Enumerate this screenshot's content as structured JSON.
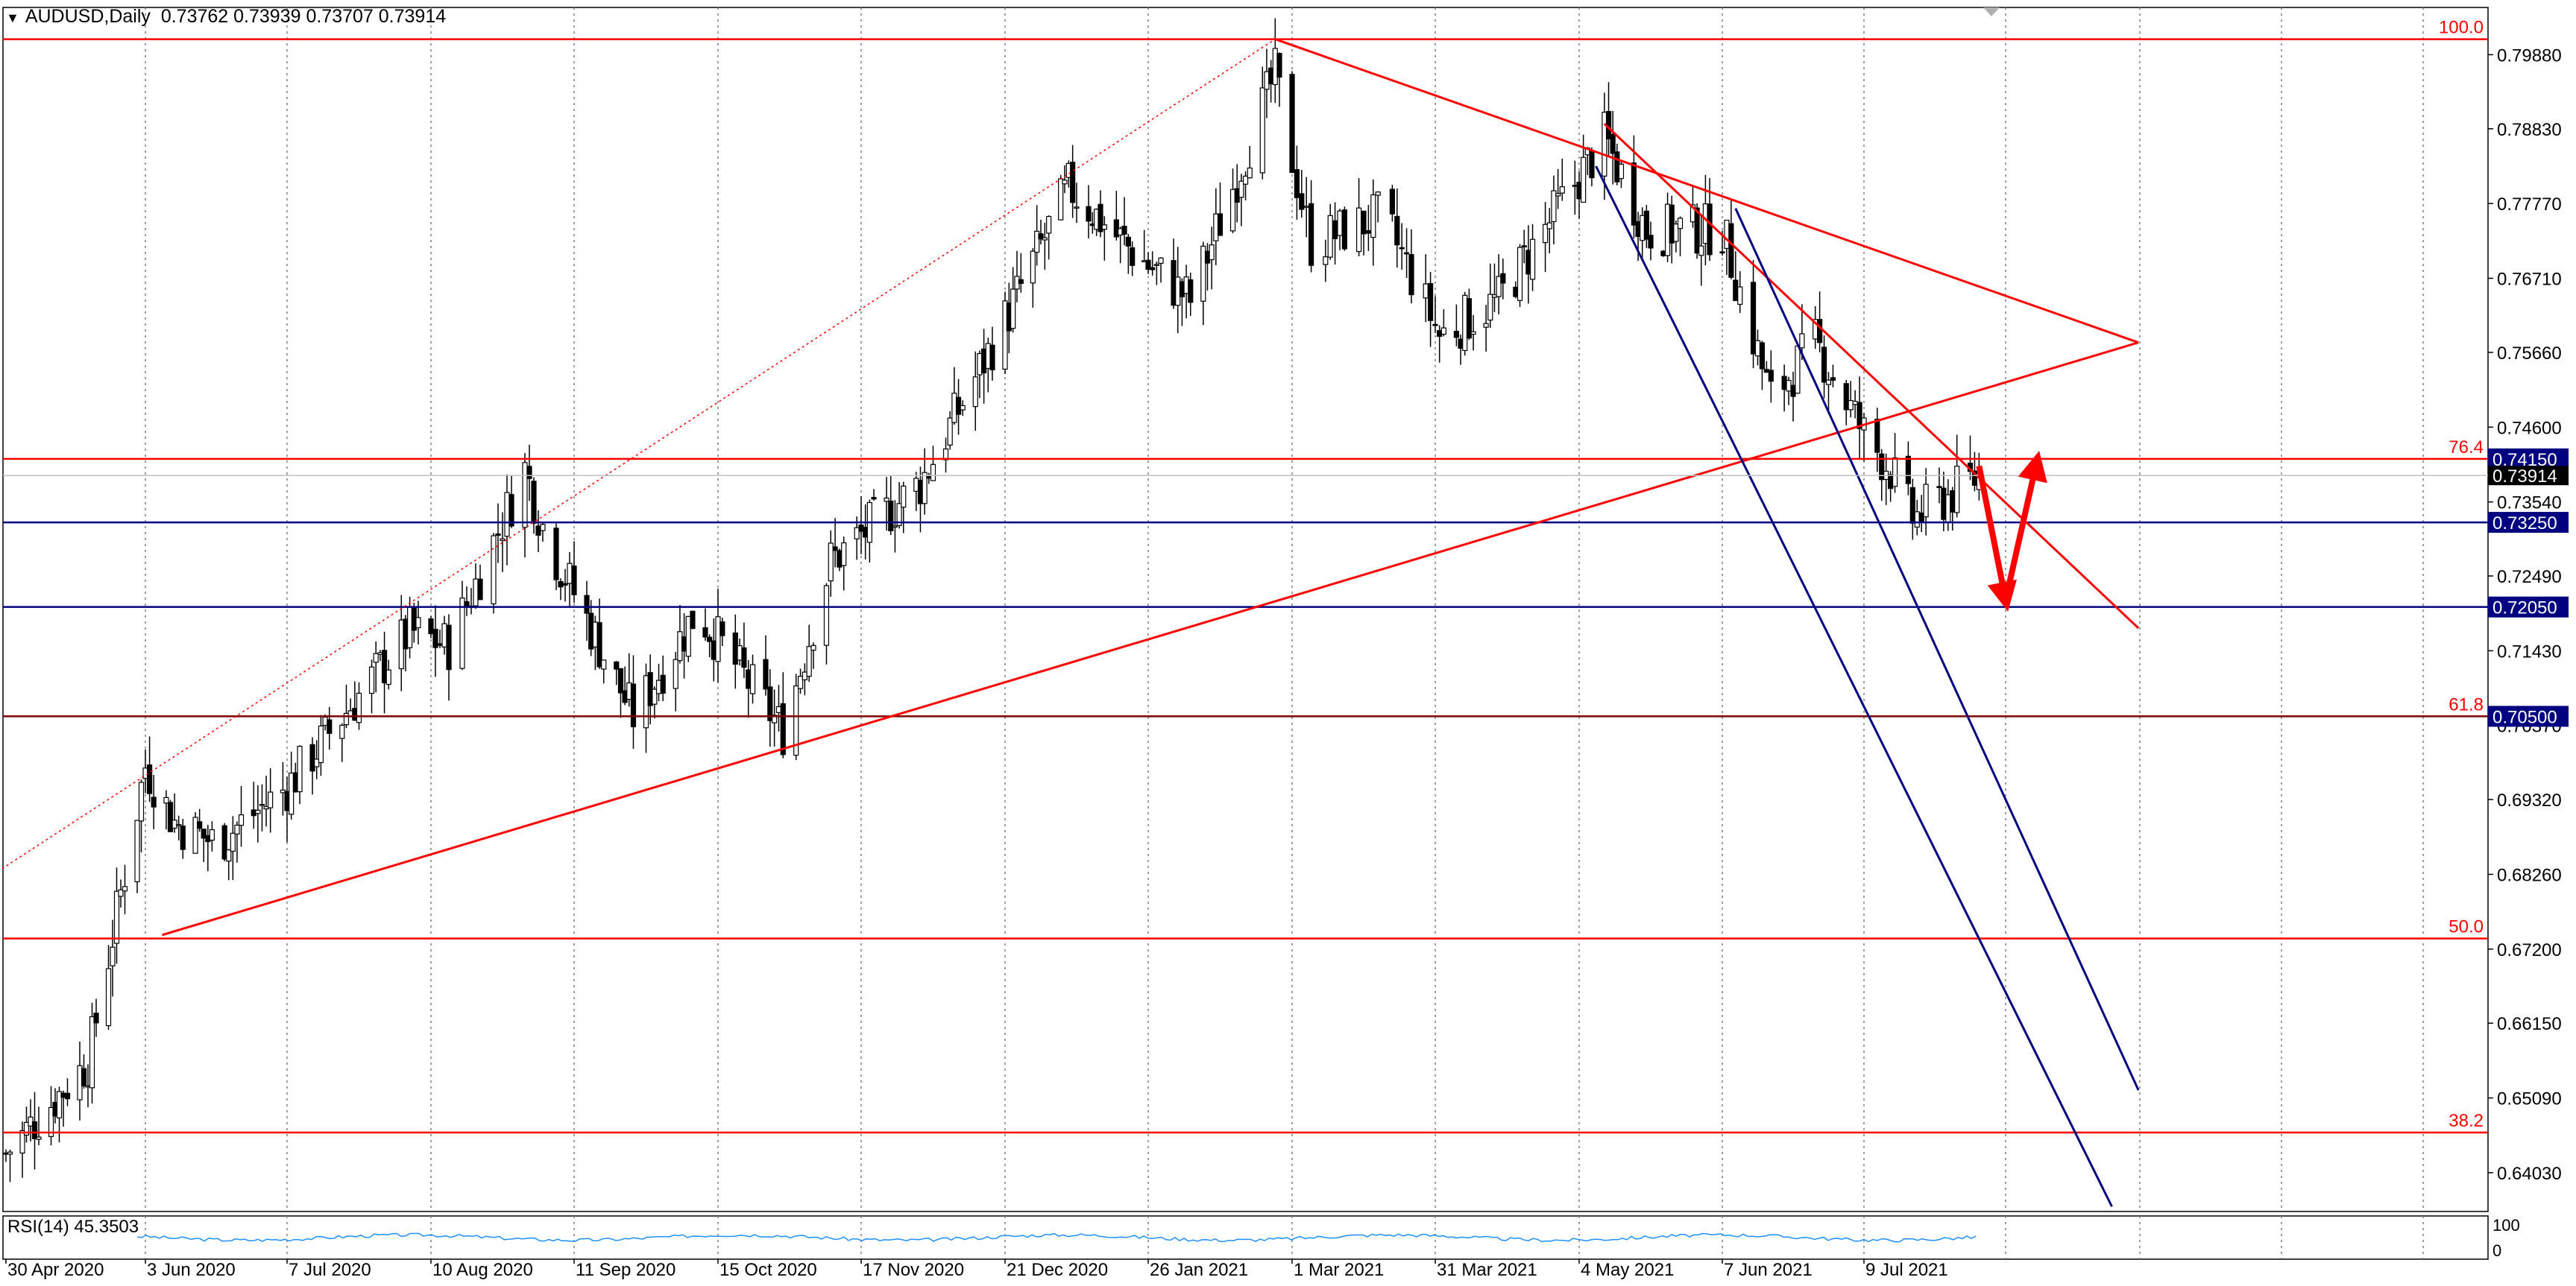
{
  "header": {
    "symbol": "AUDUSD,Daily",
    "ohlc": "0.73762 0.73939 0.73707 0.73914"
  },
  "rsi_label": "RSI(14) 45.3503",
  "rsi_scale": [
    "100",
    "0"
  ],
  "colors": {
    "background": "#ffffff",
    "grid": "#7f7f7f",
    "bull_candle": "#ffffff",
    "bear_candle": "#000000",
    "trend_red": "#ff0000",
    "channel_navy": "#000080",
    "fib_text": "#ff0000",
    "level_box": "#000080",
    "price_box": "#000000",
    "rsi_line": "#1e90ff",
    "arrow_red": "#ff0000"
  },
  "chart_data": {
    "type": "candlestick",
    "symbol": "AUDUSD",
    "timeframe": "Daily",
    "ylim": [
      0.6348,
      0.8055
    ],
    "y_ticks": [
      "0.79880",
      "0.78830",
      "0.77770",
      "0.76710",
      "0.75660",
      "0.74600",
      "0.73540",
      "0.72490",
      "0.71430",
      "0.70370",
      "0.69320",
      "0.68260",
      "0.67200",
      "0.66150",
      "0.65090",
      "0.64030"
    ],
    "x_ticks": [
      "30 Apr 2020",
      "3 Jun 2020",
      "7 Jul 2020",
      "10 Aug 2020",
      "11 Sep 2020",
      "15 Oct 2020",
      "17 Nov 2020",
      "21 Dec 2020",
      "26 Jan 2021",
      "1 Mar 2021",
      "31 Mar 2021",
      "4 May 2021",
      "7 Jun 2021",
      "9 Jul 2021"
    ],
    "current_price": "0.73914",
    "price_series_anchors": [
      {
        "date": "2020-04-30",
        "close": 0.643
      },
      {
        "date": "2020-05-20",
        "close": 0.656
      },
      {
        "date": "2020-06-03",
        "close": 0.698
      },
      {
        "date": "2020-06-10",
        "close": 0.69
      },
      {
        "date": "2020-06-20",
        "close": 0.687
      },
      {
        "date": "2020-07-07",
        "close": 0.695
      },
      {
        "date": "2020-07-20",
        "close": 0.705
      },
      {
        "date": "2020-08-05",
        "close": 0.717
      },
      {
        "date": "2020-08-14",
        "close": 0.715
      },
      {
        "date": "2020-08-31",
        "close": 0.74
      },
      {
        "date": "2020-09-05",
        "close": 0.73
      },
      {
        "date": "2020-09-25",
        "close": 0.705
      },
      {
        "date": "2020-10-10",
        "close": 0.72
      },
      {
        "date": "2020-10-30",
        "close": 0.703
      },
      {
        "date": "2020-11-10",
        "close": 0.727
      },
      {
        "date": "2020-12-01",
        "close": 0.738
      },
      {
        "date": "2020-12-20",
        "close": 0.76
      },
      {
        "date": "2021-01-06",
        "close": 0.78
      },
      {
        "date": "2021-01-20",
        "close": 0.772
      },
      {
        "date": "2021-02-05",
        "close": 0.764
      },
      {
        "date": "2021-02-25",
        "close": 0.796
      },
      {
        "date": "2021-03-05",
        "close": 0.772
      },
      {
        "date": "2021-03-20",
        "close": 0.776
      },
      {
        "date": "2021-04-01",
        "close": 0.759
      },
      {
        "date": "2021-04-15",
        "close": 0.764
      },
      {
        "date": "2021-04-28",
        "close": 0.776
      },
      {
        "date": "2021-05-10",
        "close": 0.787
      },
      {
        "date": "2021-05-20",
        "close": 0.774
      },
      {
        "date": "2021-06-07",
        "close": 0.774
      },
      {
        "date": "2021-06-18",
        "close": 0.75
      },
      {
        "date": "2021-06-28",
        "close": 0.758
      },
      {
        "date": "2021-07-09",
        "close": 0.745
      },
      {
        "date": "2021-07-15",
        "close": 0.74
      },
      {
        "date": "2021-07-20",
        "close": 0.733
      },
      {
        "date": "2021-07-30",
        "close": 0.737
      },
      {
        "date": "2021-08-04",
        "close": 0.7391
      }
    ],
    "horizontal_levels": [
      {
        "price": 0.801,
        "color": "red",
        "label": "100.0",
        "label_style": "text"
      },
      {
        "price": 0.7415,
        "color": "red",
        "label": "76.4",
        "label_style": "text",
        "box": "0.74150"
      },
      {
        "price": 0.7325,
        "color": "navy",
        "box": "0.73250"
      },
      {
        "price": 0.7205,
        "color": "navy",
        "box": "0.72050"
      },
      {
        "price": 0.705,
        "color": "maroon",
        "label": "61.8",
        "label_style": "text",
        "box": "0.70500"
      },
      {
        "price": 0.6735,
        "color": "red",
        "label": "50.0",
        "label_style": "text"
      },
      {
        "price": 0.646,
        "color": "red",
        "label": "38.2",
        "label_style": "text"
      }
    ],
    "trendlines": [
      {
        "color": "red",
        "from": {
          "date": "2021-02-25",
          "price": 0.801
        },
        "to": {
          "date": "2021-09-09",
          "price": 0.758
        }
      },
      {
        "color": "red",
        "from": {
          "date": "2021-05-10",
          "price": 0.789
        },
        "to": {
          "date": "2021-09-09",
          "price": 0.7175
        }
      },
      {
        "color": "red",
        "from": {
          "date": "2020-06-07",
          "price": 0.674
        },
        "to": {
          "date": "2021-09-09",
          "price": 0.758
        }
      },
      {
        "color": "red",
        "dotted": true,
        "from": {
          "date": "2020-04-28",
          "price": 0.683
        },
        "to": {
          "date": "2021-02-25",
          "price": 0.801
        }
      },
      {
        "color": "navy",
        "from": {
          "date": "2021-05-08",
          "price": 0.783
        },
        "to": {
          "date": "2021-09-03",
          "price": 0.6355
        }
      },
      {
        "color": "navy",
        "from": {
          "date": "2021-06-10",
          "price": 0.777
        },
        "to": {
          "date": "2021-09-09",
          "price": 0.652
        }
      }
    ],
    "projection_arrows": [
      {
        "from": {
          "date": "2021-08-04",
          "price": 0.7405
        },
        "to": {
          "date": "2021-08-10",
          "price": 0.7215
        }
      },
      {
        "from": {
          "date": "2021-08-10",
          "price": 0.7215
        },
        "to": {
          "date": "2021-08-17",
          "price": 0.741
        }
      }
    ],
    "rsi": {
      "period": 14,
      "last": 45.3503,
      "approx_range": [
        40,
        60
      ]
    }
  }
}
